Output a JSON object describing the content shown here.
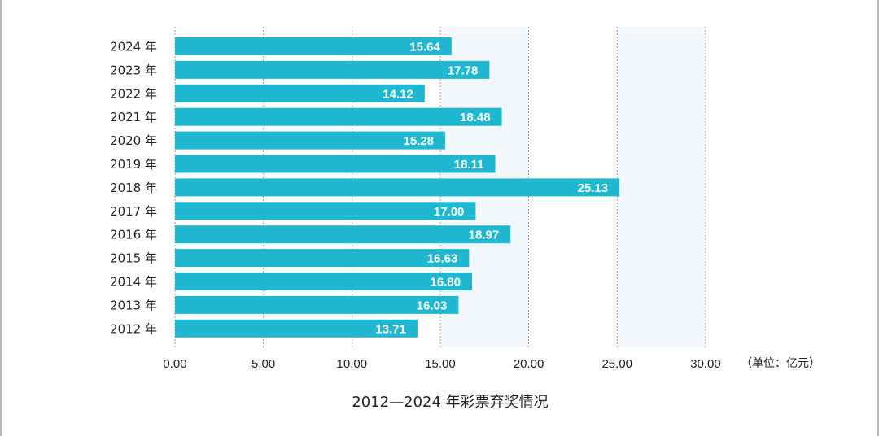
{
  "chart_data": {
    "type": "bar",
    "orientation": "horizontal",
    "title": "2012—2024 年彩票弃奖情况",
    "unit": "（单位：亿元）",
    "categories": [
      "2024 年",
      "2023 年",
      "2022 年",
      "2021 年",
      "2020 年",
      "2019 年",
      "2018 年",
      "2017 年",
      "2016 年",
      "2015 年",
      "2014 年",
      "2013 年",
      "2012 年"
    ],
    "values": [
      15.64,
      17.78,
      14.12,
      18.48,
      15.28,
      18.11,
      25.13,
      17.0,
      18.97,
      16.63,
      16.8,
      16.03,
      13.71
    ],
    "value_labels": [
      "15.64",
      "17.78",
      "14.12",
      "18.48",
      "15.28",
      "18.11",
      "25.13",
      "17.00",
      "18.97",
      "16.63",
      "16.80",
      "16.03",
      "13.71"
    ],
    "xticks": [
      "0.00",
      "5.00",
      "10.00",
      "15.00",
      "20.00",
      "25.00",
      "30.00"
    ],
    "xlim": [
      0,
      30
    ],
    "grid": "vertical dashed",
    "bar_color": "#1fb8d0",
    "band_color": "#f3f8fc"
  }
}
